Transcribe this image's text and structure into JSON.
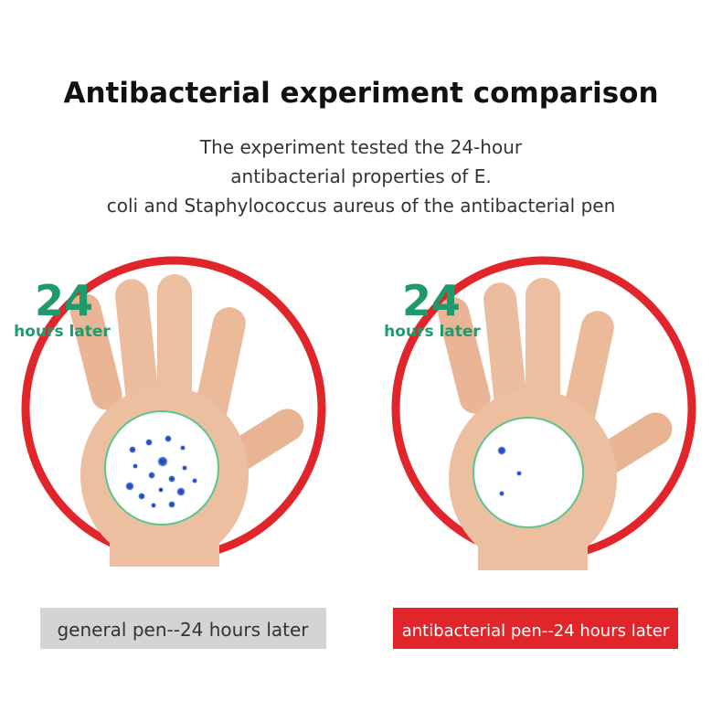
{
  "header": {
    "title": "Antibacterial experiment comparison",
    "subtitle": [
      "The experiment tested the 24-hour",
      "antibacterial properties of E.",
      "coli and Staphylococcus aureus of the antibacterial pen"
    ]
  },
  "panels": [
    {
      "number": "24",
      "label": "hours later",
      "caption": "general pen--24 hours later"
    },
    {
      "number": "24",
      "label": "hours later",
      "caption": "antibacterial pen--24 hours later"
    }
  ]
}
